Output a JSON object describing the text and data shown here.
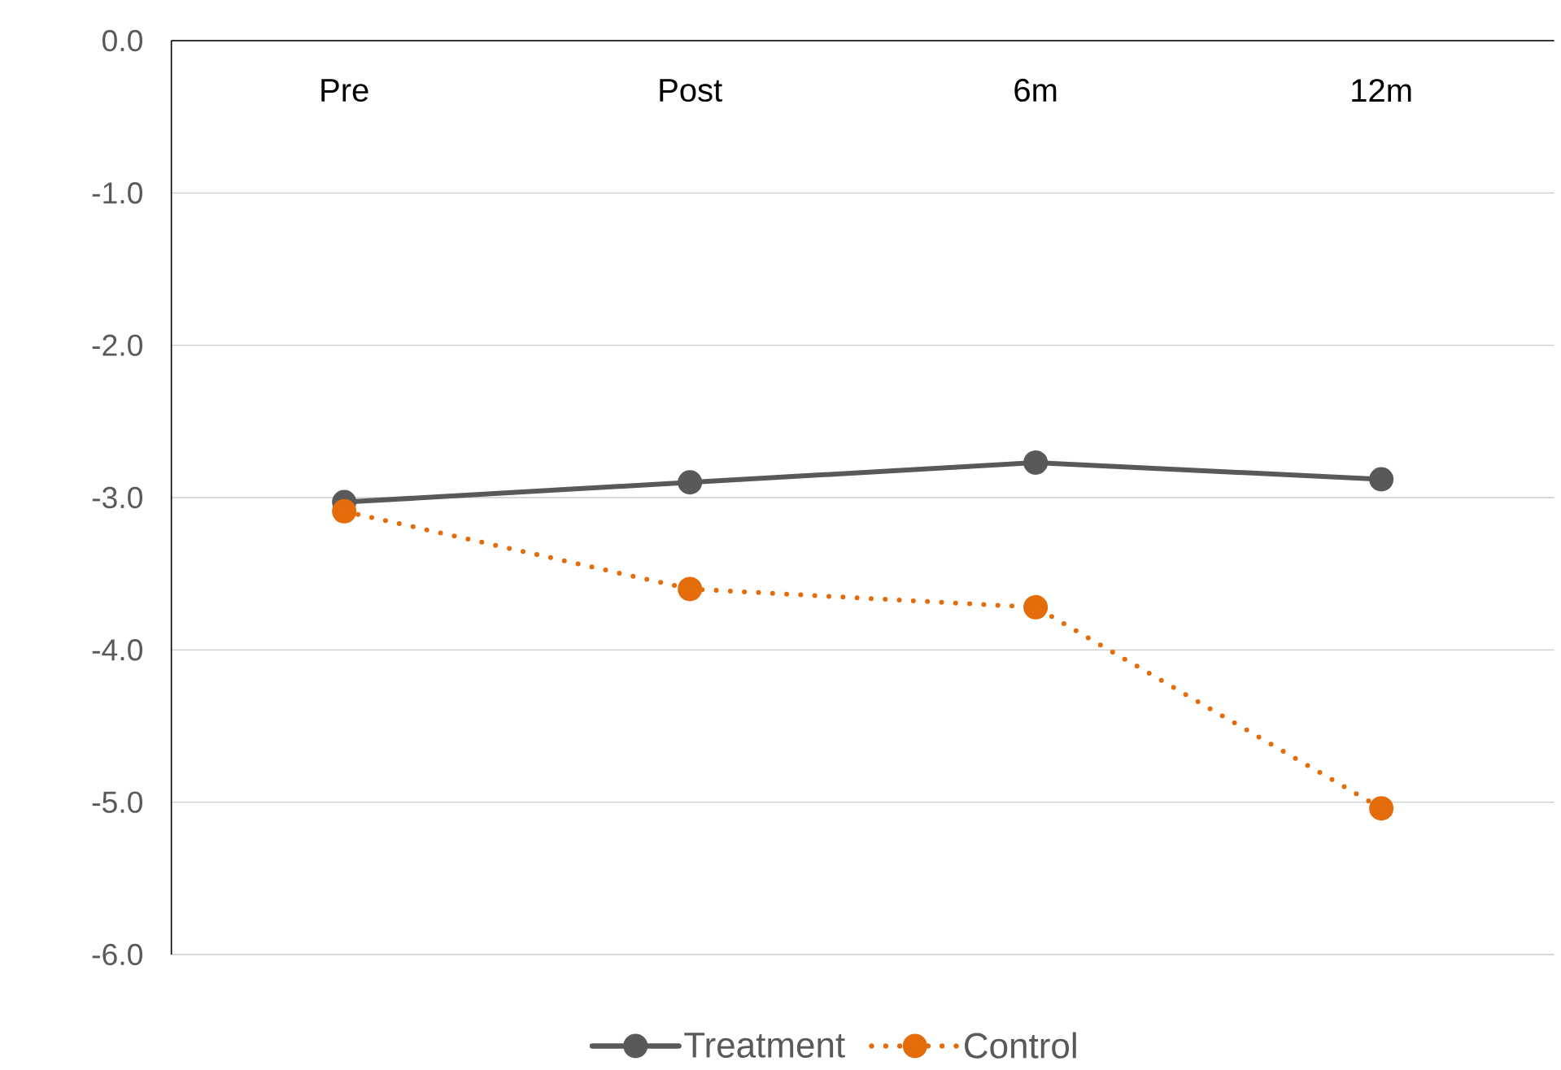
{
  "chart_data": {
    "type": "line",
    "categories": [
      "Pre",
      "Post",
      "6m",
      "12m"
    ],
    "series": [
      {
        "name": "Treatment",
        "color": "#595959",
        "line_style": "solid",
        "values": [
          -3.03,
          -2.9,
          -2.77,
          -2.88
        ]
      },
      {
        "name": "Control",
        "color": "#e46c0a",
        "line_style": "dotted",
        "values": [
          -3.09,
          -3.6,
          -3.72,
          -5.04
        ]
      }
    ],
    "ylim": [
      -6,
      0
    ],
    "yticks": [
      {
        "value": 0,
        "label": "0.0"
      },
      {
        "value": -1,
        "label": "-1.0"
      },
      {
        "value": -2,
        "label": "-2.0"
      },
      {
        "value": -3,
        "label": "-3.0"
      },
      {
        "value": -4,
        "label": "-4.0"
      },
      {
        "value": -5,
        "label": "-5.0"
      },
      {
        "value": -6,
        "label": "-6.0"
      }
    ],
    "grid": "y",
    "legend": "bottom",
    "marker": "circle"
  }
}
